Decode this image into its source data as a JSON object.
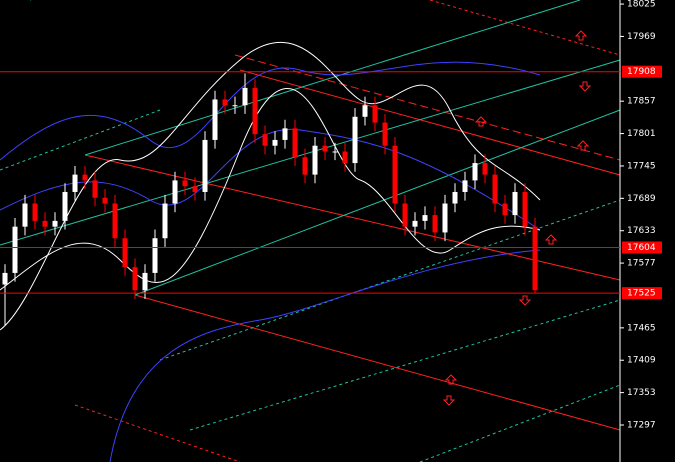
{
  "chart_data": {
    "type": "candlestick",
    "open": [
      17540,
      17560,
      17640,
      17680,
      17650,
      17640,
      17650,
      17700,
      17730,
      17720,
      17690,
      17680,
      17620,
      17570,
      17530,
      17560,
      17620,
      17680,
      17720,
      17710,
      17700,
      17790,
      17860,
      17850,
      17850,
      17880,
      17800,
      17780,
      17790,
      17810,
      17760,
      17730,
      17780,
      17770,
      17770,
      17750,
      17830,
      17850,
      17820,
      17780,
      17680,
      17640,
      17650,
      17660,
      17630,
      17680,
      17700,
      17720,
      17750,
      17730,
      17680,
      17660,
      17700,
      17640
    ],
    "high": [
      17575,
      17655,
      17695,
      17695,
      17665,
      17665,
      17715,
      17745,
      17745,
      17735,
      17705,
      17695,
      17635,
      17585,
      17575,
      17635,
      17695,
      17735,
      17735,
      17725,
      17805,
      17875,
      17875,
      17865,
      17905,
      17895,
      17815,
      17805,
      17825,
      17825,
      17775,
      17795,
      17795,
      17785,
      17785,
      17845,
      17865,
      17865,
      17835,
      17795,
      17695,
      17665,
      17675,
      17675,
      17695,
      17715,
      17735,
      17765,
      17765,
      17745,
      17695,
      17715,
      17715,
      17655
    ],
    "low": [
      17470,
      17545,
      17625,
      17635,
      17625,
      17625,
      17635,
      17685,
      17705,
      17675,
      17665,
      17605,
      17555,
      17515,
      17515,
      17545,
      17605,
      17665,
      17695,
      17685,
      17685,
      17775,
      17835,
      17835,
      17835,
      17785,
      17765,
      17765,
      17775,
      17745,
      17715,
      17715,
      17755,
      17755,
      17735,
      17735,
      17815,
      17805,
      17765,
      17665,
      17625,
      17625,
      17635,
      17615,
      17615,
      17665,
      17685,
      17705,
      17715,
      17665,
      17645,
      17645,
      17625,
      17525
    ],
    "close": [
      17560,
      17640,
      17680,
      17650,
      17640,
      17650,
      17700,
      17730,
      17720,
      17690,
      17680,
      17620,
      17570,
      17530,
      17560,
      17620,
      17680,
      17720,
      17710,
      17700,
      17790,
      17860,
      17850,
      17850,
      17880,
      17800,
      17780,
      17790,
      17810,
      17760,
      17730,
      17780,
      17770,
      17770,
      17750,
      17830,
      17850,
      17820,
      17780,
      17680,
      17640,
      17650,
      17660,
      17630,
      17680,
      17700,
      17720,
      17750,
      17730,
      17680,
      17660,
      17700,
      17640,
      17530
    ],
    "up_color": "#ffffff",
    "down_color": "#ff0000",
    "levels": [
      17908,
      17604,
      17525
    ],
    "level_color": "#ff0000",
    "ylim": [
      17233,
      18032
    ],
    "yticks": [
      18025,
      17969,
      17857,
      17801,
      17745,
      17689,
      17633,
      17577,
      17465,
      17409,
      17353,
      17297
    ]
  }
}
